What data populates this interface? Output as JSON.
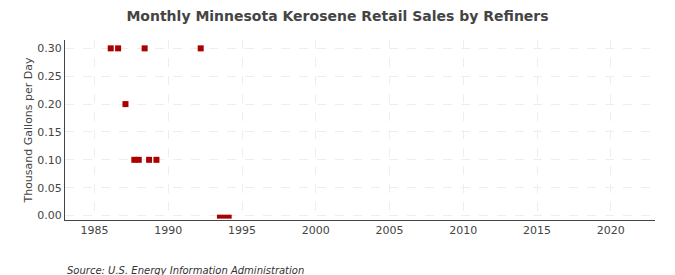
{
  "chart_data": {
    "type": "scatter",
    "title": "Monthly Minnesota Kerosene Retail Sales by Refiners",
    "ylabel": "Thousand Gallons per Day",
    "annotations": [
      "Source: U.S. Energy Information Administration"
    ],
    "grid": true,
    "xlim": [
      1983,
      2023
    ],
    "xticks": [
      1985,
      1990,
      1995,
      2000,
      2005,
      2010,
      2015,
      2020
    ],
    "ylim": [
      -0.008,
      0.315
    ],
    "yticks": [
      {
        "value": 0,
        "label": "0.00"
      },
      0.05,
      {
        "value": 0.1,
        "label": "0.10"
      },
      0.15,
      {
        "value": 0.2,
        "label": "0.20"
      },
      0.25,
      {
        "value": 0.3,
        "label": "0.30"
      }
    ],
    "series": [
      {
        "type": "scatter",
        "marker": "square",
        "color": "#aa0000",
        "x": [
          1986.1,
          1986.6,
          1987.1,
          1987.7,
          1988.0,
          1988.4,
          1988.7,
          1989.2,
          1992.2
        ],
        "values": [
          0.3,
          0.3,
          0.2,
          0.1,
          0.1,
          0.3,
          0.1,
          0.1,
          0.3
        ]
      },
      {
        "type": "line",
        "line_style": "solid",
        "color": "#aa0000",
        "x": [
          1993.3,
          1994.3
        ],
        "values": [
          -0.002,
          -0.002
        ]
      }
    ]
  }
}
